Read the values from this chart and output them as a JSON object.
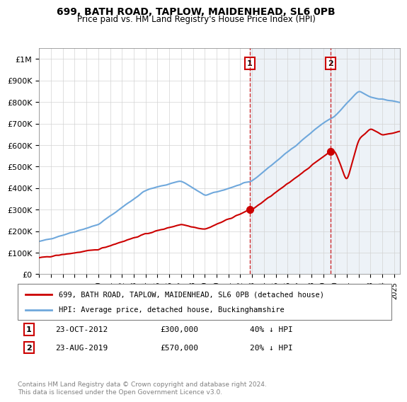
{
  "title": "699, BATH ROAD, TAPLOW, MAIDENHEAD, SL6 0PB",
  "subtitle": "Price paid vs. HM Land Registry's House Price Index (HPI)",
  "ylabel": "",
  "ylim": [
    0,
    1050000
  ],
  "yticks": [
    0,
    100000,
    200000,
    300000,
    400000,
    500000,
    600000,
    700000,
    800000,
    900000,
    1000000
  ],
  "ytick_labels": [
    "£0",
    "£100K",
    "£200K",
    "£300K",
    "£400K",
    "£500K",
    "£600K",
    "£700K",
    "£800K",
    "£900K",
    "£1M"
  ],
  "hpi_color": "#6fa8dc",
  "price_color": "#cc0000",
  "vline_color": "#cc0000",
  "sale1_date": 2012.81,
  "sale1_price": 300000,
  "sale1_label": "1",
  "sale2_date": 2019.64,
  "sale2_price": 570000,
  "sale2_label": "2",
  "sale1_info": "23-OCT-2012     £300,000     40% ↓ HPI",
  "sale2_info": "23-AUG-2019     £570,000     20% ↓ HPI",
  "legend_line1": "699, BATH ROAD, TAPLOW, MAIDENHEAD, SL6 0PB (detached house)",
  "legend_line2": "HPI: Average price, detached house, Buckinghamshire",
  "footnote": "Contains HM Land Registry data © Crown copyright and database right 2024.\nThis data is licensed under the Open Government Licence v3.0.",
  "bg_highlight_color": "#dce6f1",
  "bg_highlight_alpha": 0.5
}
